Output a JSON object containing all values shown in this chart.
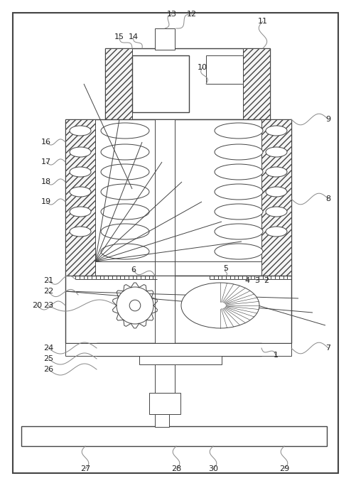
{
  "bg_color": "#ffffff",
  "line_color": "#444444",
  "label_color": "#222222",
  "fig_width": 4.94,
  "fig_height": 6.94,
  "dpi": 100
}
